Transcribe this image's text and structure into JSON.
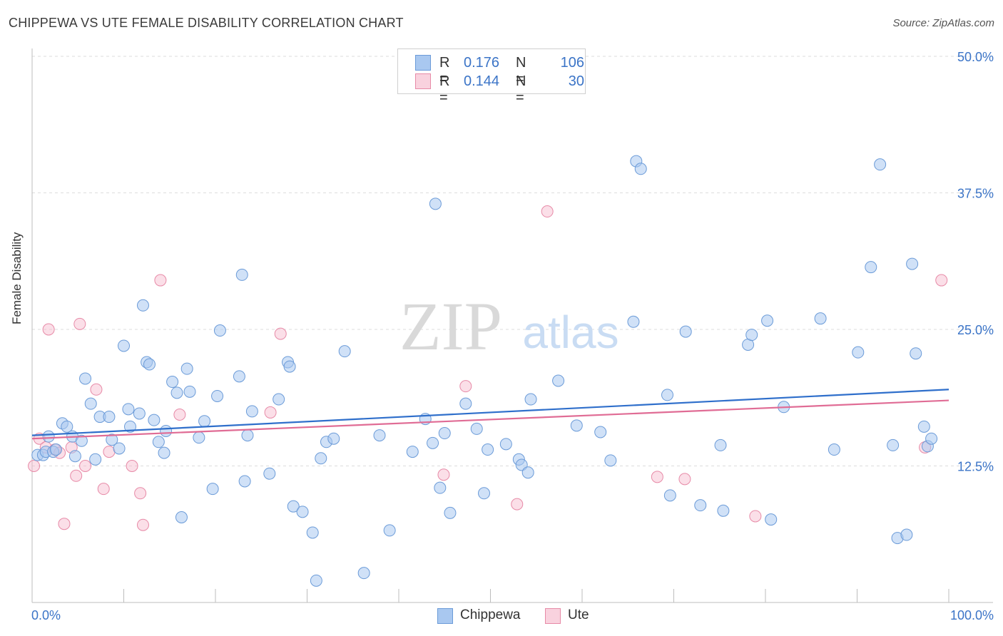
{
  "header": {
    "title": "CHIPPEWA VS UTE FEMALE DISABILITY CORRELATION CHART",
    "source": "Source: ZipAtlas.com"
  },
  "watermark": {
    "zip": "ZIP",
    "atlas": "atlas"
  },
  "legend": {
    "rows": [
      {
        "r_label": "R =",
        "r_value": "0.176",
        "n_label": "N =",
        "n_value": "106",
        "color": "#a9c8f0"
      },
      {
        "r_label": "R =",
        "r_value": "0.144",
        "n_label": "N =",
        "n_value": "30",
        "color": "#f6b9cb"
      }
    ]
  },
  "bottom_legend": [
    "Chippewa",
    "Ute"
  ],
  "colors": {
    "blue_fill": "#a9c8f0",
    "blue_stroke": "#6b9bd8",
    "blue_line": "#2f6fcb",
    "pink_fill": "#f6b9cb",
    "pink_stroke": "#e78aa7",
    "pink_line": "#e06c95",
    "tick_text": "#3b74c7"
  },
  "chart_data": {
    "type": "scatter",
    "title": "CHIPPEWA VS UTE FEMALE DISABILITY CORRELATION CHART",
    "xlabel": "",
    "ylabel": "Female Disability",
    "xlim": [
      0,
      100
    ],
    "ylim": [
      0,
      50
    ],
    "x_tick_labels": [
      "0.0%",
      "100.0%"
    ],
    "y_ticks": [
      12.5,
      25.0,
      37.5,
      50.0
    ],
    "y_tick_labels": [
      "12.5%",
      "25.0%",
      "37.5%",
      "50.0%"
    ],
    "grid": true,
    "legend_position": "top-center",
    "series": [
      {
        "name": "Chippewa",
        "r": 0.176,
        "n": 106,
        "trend": [
          [
            0,
            15.3
          ],
          [
            100,
            19.5
          ]
        ],
        "points": [
          [
            0.6,
            13.5
          ],
          [
            1.2,
            13.5
          ],
          [
            1.5,
            13.8
          ],
          [
            1.8,
            15.2
          ],
          [
            2.3,
            13.8
          ],
          [
            2.6,
            14.0
          ],
          [
            3.3,
            16.4
          ],
          [
            3.8,
            16.1
          ],
          [
            4.4,
            15.2
          ],
          [
            4.7,
            13.4
          ],
          [
            5.4,
            14.8
          ],
          [
            5.8,
            20.5
          ],
          [
            6.4,
            18.2
          ],
          [
            6.9,
            13.1
          ],
          [
            7.4,
            17.0
          ],
          [
            8.4,
            17.0
          ],
          [
            8.7,
            14.9
          ],
          [
            9.5,
            14.1
          ],
          [
            10.0,
            23.5
          ],
          [
            10.5,
            17.7
          ],
          [
            10.7,
            16.1
          ],
          [
            11.7,
            17.3
          ],
          [
            12.1,
            27.2
          ],
          [
            12.5,
            22.0
          ],
          [
            12.8,
            21.8
          ],
          [
            13.3,
            16.7
          ],
          [
            13.8,
            14.7
          ],
          [
            14.4,
            13.7
          ],
          [
            14.6,
            15.7
          ],
          [
            15.3,
            20.2
          ],
          [
            15.8,
            19.2
          ],
          [
            16.3,
            7.8
          ],
          [
            16.9,
            21.4
          ],
          [
            17.2,
            19.3
          ],
          [
            18.2,
            15.1
          ],
          [
            18.8,
            16.6
          ],
          [
            19.7,
            10.4
          ],
          [
            20.2,
            18.9
          ],
          [
            20.5,
            24.9
          ],
          [
            22.6,
            20.7
          ],
          [
            22.9,
            30.0
          ],
          [
            23.2,
            11.1
          ],
          [
            23.5,
            15.3
          ],
          [
            24.0,
            17.5
          ],
          [
            25.9,
            11.8
          ],
          [
            26.9,
            18.6
          ],
          [
            27.9,
            22.0
          ],
          [
            28.1,
            21.6
          ],
          [
            28.5,
            8.8
          ],
          [
            29.5,
            8.3
          ],
          [
            30.6,
            6.4
          ],
          [
            31.0,
            2.0
          ],
          [
            31.5,
            13.2
          ],
          [
            32.1,
            14.7
          ],
          [
            32.9,
            15.0
          ],
          [
            34.1,
            23.0
          ],
          [
            36.2,
            2.7
          ],
          [
            37.9,
            15.3
          ],
          [
            39.0,
            6.6
          ],
          [
            41.5,
            13.8
          ],
          [
            42.9,
            16.8
          ],
          [
            43.7,
            14.6
          ],
          [
            44.0,
            36.5
          ],
          [
            44.5,
            10.5
          ],
          [
            45.0,
            15.5
          ],
          [
            45.6,
            8.2
          ],
          [
            47.3,
            18.2
          ],
          [
            48.5,
            15.9
          ],
          [
            49.3,
            10.0
          ],
          [
            49.7,
            14.0
          ],
          [
            51.7,
            14.5
          ],
          [
            53.1,
            13.1
          ],
          [
            53.4,
            12.6
          ],
          [
            54.1,
            11.9
          ],
          [
            54.4,
            18.6
          ],
          [
            57.4,
            20.3
          ],
          [
            59.4,
            16.2
          ],
          [
            62.0,
            15.6
          ],
          [
            63.1,
            13.0
          ],
          [
            65.6,
            25.7
          ],
          [
            65.9,
            40.4
          ],
          [
            66.4,
            39.7
          ],
          [
            69.3,
            19.0
          ],
          [
            69.6,
            9.8
          ],
          [
            71.3,
            24.8
          ],
          [
            72.9,
            8.9
          ],
          [
            75.1,
            14.4
          ],
          [
            75.4,
            8.4
          ],
          [
            78.1,
            23.6
          ],
          [
            78.5,
            24.5
          ],
          [
            80.2,
            25.8
          ],
          [
            80.6,
            7.6
          ],
          [
            82.0,
            17.9
          ],
          [
            86.0,
            26.0
          ],
          [
            87.5,
            14.0
          ],
          [
            90.1,
            22.9
          ],
          [
            91.5,
            30.7
          ],
          [
            92.5,
            40.1
          ],
          [
            93.9,
            14.4
          ],
          [
            94.4,
            5.9
          ],
          [
            95.4,
            6.2
          ],
          [
            96.0,
            31.0
          ],
          [
            96.4,
            22.8
          ],
          [
            97.3,
            16.1
          ],
          [
            97.7,
            14.3
          ],
          [
            98.1,
            15.0
          ]
        ]
      },
      {
        "name": "Ute",
        "r": 0.144,
        "n": 30,
        "trend": [
          [
            0,
            15.0
          ],
          [
            100,
            18.5
          ]
        ],
        "points": [
          [
            0.2,
            12.5
          ],
          [
            0.8,
            15.0
          ],
          [
            1.5,
            14.2
          ],
          [
            1.8,
            25.0
          ],
          [
            2.5,
            14.0
          ],
          [
            3.0,
            13.7
          ],
          [
            3.5,
            7.2
          ],
          [
            4.3,
            14.2
          ],
          [
            4.8,
            11.6
          ],
          [
            5.2,
            25.5
          ],
          [
            5.8,
            12.5
          ],
          [
            7.0,
            19.5
          ],
          [
            7.8,
            10.4
          ],
          [
            8.4,
            13.8
          ],
          [
            10.9,
            12.5
          ],
          [
            11.8,
            10.0
          ],
          [
            12.1,
            7.1
          ],
          [
            14.0,
            29.5
          ],
          [
            16.1,
            17.2
          ],
          [
            26.0,
            17.4
          ],
          [
            27.1,
            24.6
          ],
          [
            44.9,
            11.7
          ],
          [
            47.3,
            19.8
          ],
          [
            52.9,
            9.0
          ],
          [
            56.2,
            35.8
          ],
          [
            68.2,
            11.5
          ],
          [
            71.2,
            11.3
          ],
          [
            78.9,
            7.9
          ],
          [
            97.4,
            14.2
          ],
          [
            99.2,
            29.5
          ]
        ]
      }
    ]
  }
}
